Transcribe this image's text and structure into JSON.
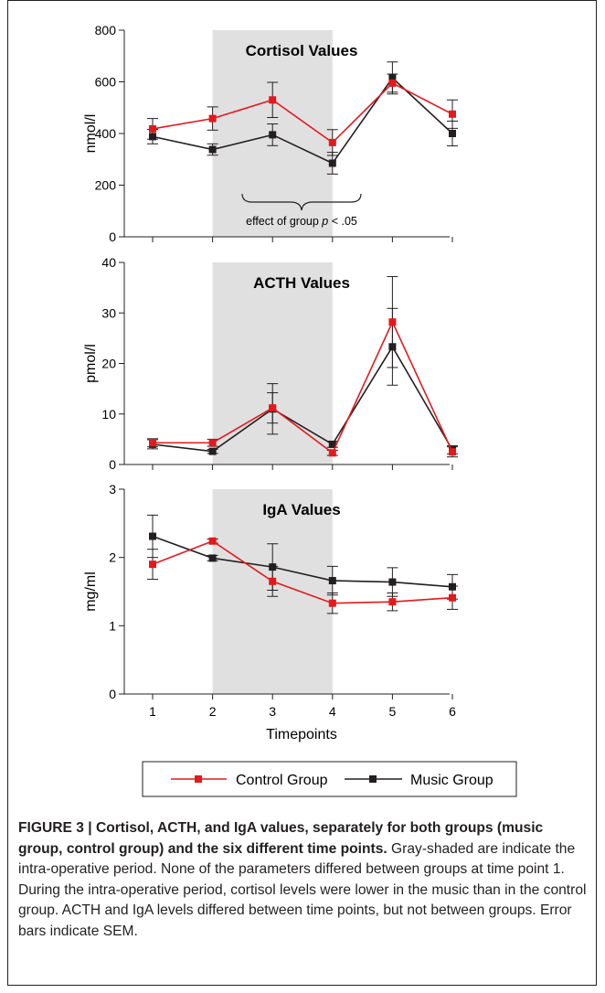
{
  "caption": {
    "bold": "FIGURE 3 | Cortisol, ACTH, and IgA values, separately for both groups (music group, control group) and the six different time points.",
    "text": " Gray-shaded are indicate the intra-operative period. None of the parameters differed between groups at time point 1. During the intra-operative period, cortisol levels were lower in the music than in the control group. ACTH and IgA levels differed between time points, but not between groups. Error bars indicate SEM."
  },
  "legend": {
    "items": [
      {
        "label": "Control Group",
        "color": "#e3191c"
      },
      {
        "label": "Music Group",
        "color": "#231f20"
      }
    ]
  },
  "annotation": {
    "prefix": "effect of group ",
    "italic": "p",
    "suffix": " < .05"
  },
  "colors": {
    "control": "#e3191c",
    "music": "#231f20",
    "shade": "#e0e0e0",
    "axis": "#231f20"
  },
  "chart_data": [
    {
      "type": "line",
      "title": "Cortisol Values",
      "xlabel": "",
      "ylabel": "nmol/l",
      "x": [
        1,
        2,
        3,
        4,
        5,
        6
      ],
      "ylim": [
        0,
        800
      ],
      "yticks": [
        0,
        200,
        400,
        600,
        800
      ],
      "shaded_x_range": [
        2,
        4
      ],
      "series": [
        {
          "name": "Control Group",
          "values": [
            418,
            458,
            530,
            365,
            595,
            475
          ],
          "errors": [
            40,
            45,
            68,
            50,
            35,
            55
          ]
        },
        {
          "name": "Music Group",
          "values": [
            388,
            338,
            395,
            285,
            615,
            400
          ],
          "errors": [
            28,
            22,
            42,
            42,
            62,
            48
          ]
        }
      ]
    },
    {
      "type": "line",
      "title": "ACTH Values",
      "xlabel": "",
      "ylabel": "pmol/l",
      "x": [
        1,
        2,
        3,
        4,
        5,
        6
      ],
      "ylim": [
        0,
        40
      ],
      "yticks": [
        0,
        10,
        20,
        30,
        40
      ],
      "shaded_x_range": [
        2,
        4
      ],
      "series": [
        {
          "name": "Control Group",
          "values": [
            4.3,
            4.3,
            11.2,
            2.3,
            28.2,
            2.5
          ],
          "errors": [
            0.8,
            0.7,
            3.0,
            0.5,
            9.0,
            1.0
          ]
        },
        {
          "name": "Music Group",
          "values": [
            4.0,
            2.6,
            11.0,
            4.0,
            23.3,
            2.9
          ],
          "errors": [
            0.9,
            0.4,
            5.0,
            0.6,
            7.6,
            0.8
          ]
        }
      ]
    },
    {
      "type": "line",
      "title": "IgA Values",
      "xlabel": "Timepoints",
      "ylabel": "mg/ml",
      "x": [
        1,
        2,
        3,
        4,
        5,
        6
      ],
      "ylim": [
        0,
        3
      ],
      "yticks": [
        0,
        1,
        2,
        3
      ],
      "shaded_x_range": [
        2,
        4
      ],
      "series": [
        {
          "name": "Control Group",
          "values": [
            1.9,
            2.24,
            1.65,
            1.33,
            1.35,
            1.41
          ],
          "errors": [
            0.22,
            0.03,
            0.22,
            0.15,
            0.13,
            0.17
          ]
        },
        {
          "name": "Music Group",
          "values": [
            2.31,
            1.99,
            1.86,
            1.66,
            1.64,
            1.57
          ],
          "errors": [
            0.31,
            0.04,
            0.34,
            0.21,
            0.21,
            0.18
          ]
        }
      ]
    }
  ]
}
